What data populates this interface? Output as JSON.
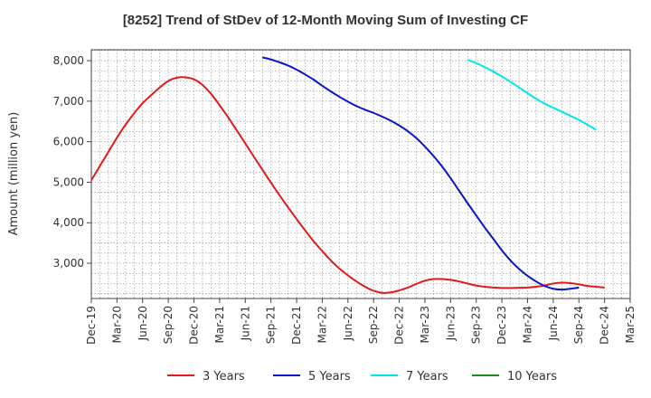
{
  "chart_data": {
    "type": "line",
    "title": "[8252]  Trend of StDev of 12-Month Moving Sum of Investing CF",
    "ylabel": "Amount (million yen)",
    "xlabel": "",
    "x_start": "Dec-19",
    "x_end": "Mar-25",
    "x_ticks": [
      "Dec-19",
      "Mar-20",
      "Jun-20",
      "Sep-20",
      "Dec-20",
      "Mar-21",
      "Jun-21",
      "Sep-21",
      "Dec-21",
      "Mar-22",
      "Jun-22",
      "Sep-22",
      "Dec-22",
      "Mar-23",
      "Jun-23",
      "Sep-23",
      "Dec-23",
      "Mar-24",
      "Jun-24",
      "Sep-24",
      "Dec-24",
      "Mar-25"
    ],
    "y_ticks": [
      3000,
      4000,
      5000,
      6000,
      7000,
      8000
    ],
    "ylim": [
      2130,
      8270
    ],
    "grid": true,
    "legend_position": "bottom",
    "series": [
      {
        "name": "3 Years",
        "color": "#e31a1c",
        "points": [
          [
            "Dec-19",
            5050
          ],
          [
            "Jan-20",
            5400
          ],
          [
            "Feb-20",
            5750
          ],
          [
            "Mar-20",
            6100
          ],
          [
            "Apr-20",
            6420
          ],
          [
            "May-20",
            6700
          ],
          [
            "Jun-20",
            6950
          ],
          [
            "Jul-20",
            7150
          ],
          [
            "Aug-20",
            7340
          ],
          [
            "Sep-20",
            7500
          ],
          [
            "Oct-20",
            7580
          ],
          [
            "Nov-20",
            7590
          ],
          [
            "Dec-20",
            7540
          ],
          [
            "Jan-21",
            7400
          ],
          [
            "Feb-21",
            7180
          ],
          [
            "Mar-21",
            6900
          ],
          [
            "Apr-21",
            6600
          ],
          [
            "May-21",
            6280
          ],
          [
            "Jun-21",
            5960
          ],
          [
            "Jul-21",
            5630
          ],
          [
            "Aug-21",
            5310
          ],
          [
            "Sep-21",
            4990
          ],
          [
            "Oct-21",
            4680
          ],
          [
            "Nov-21",
            4380
          ],
          [
            "Dec-21",
            4090
          ],
          [
            "Jan-22",
            3810
          ],
          [
            "Feb-22",
            3540
          ],
          [
            "Mar-22",
            3300
          ],
          [
            "Apr-22",
            3070
          ],
          [
            "May-22",
            2870
          ],
          [
            "Jun-22",
            2700
          ],
          [
            "Jul-22",
            2550
          ],
          [
            "Aug-22",
            2420
          ],
          [
            "Sep-22",
            2320
          ],
          [
            "Oct-22",
            2270
          ],
          [
            "Nov-22",
            2280
          ],
          [
            "Dec-22",
            2330
          ],
          [
            "Jan-23",
            2400
          ],
          [
            "Feb-23",
            2490
          ],
          [
            "Mar-23",
            2570
          ],
          [
            "Apr-23",
            2610
          ],
          [
            "May-23",
            2610
          ],
          [
            "Jun-23",
            2590
          ],
          [
            "Jul-23",
            2550
          ],
          [
            "Aug-23",
            2500
          ],
          [
            "Sep-23",
            2450
          ],
          [
            "Oct-23",
            2420
          ],
          [
            "Nov-23",
            2400
          ],
          [
            "Dec-23",
            2390
          ],
          [
            "Jan-24",
            2390
          ],
          [
            "Feb-24",
            2395
          ],
          [
            "Mar-24",
            2400
          ],
          [
            "Apr-24",
            2420
          ],
          [
            "May-24",
            2450
          ],
          [
            "Jun-24",
            2500
          ],
          [
            "Jul-24",
            2520
          ],
          [
            "Aug-24",
            2510
          ],
          [
            "Sep-24",
            2480
          ],
          [
            "Oct-24",
            2440
          ],
          [
            "Nov-24",
            2420
          ],
          [
            "Dec-24",
            2400
          ]
        ]
      },
      {
        "name": "5 Years",
        "color": "#0a14c8",
        "points": [
          [
            "Aug-21",
            8080
          ],
          [
            "Sep-21",
            8030
          ],
          [
            "Oct-21",
            7960
          ],
          [
            "Nov-21",
            7880
          ],
          [
            "Dec-21",
            7780
          ],
          [
            "Jan-22",
            7660
          ],
          [
            "Feb-22",
            7530
          ],
          [
            "Mar-22",
            7380
          ],
          [
            "Apr-22",
            7240
          ],
          [
            "May-22",
            7110
          ],
          [
            "Jun-22",
            6990
          ],
          [
            "Jul-22",
            6880
          ],
          [
            "Aug-22",
            6790
          ],
          [
            "Sep-22",
            6710
          ],
          [
            "Oct-22",
            6620
          ],
          [
            "Nov-22",
            6520
          ],
          [
            "Dec-22",
            6400
          ],
          [
            "Jan-23",
            6260
          ],
          [
            "Feb-23",
            6090
          ],
          [
            "Mar-23",
            5880
          ],
          [
            "Apr-23",
            5650
          ],
          [
            "May-23",
            5390
          ],
          [
            "Jun-23",
            5100
          ],
          [
            "Jul-23",
            4790
          ],
          [
            "Aug-23",
            4480
          ],
          [
            "Sep-23",
            4180
          ],
          [
            "Oct-23",
            3880
          ],
          [
            "Nov-23",
            3600
          ],
          [
            "Dec-23",
            3320
          ],
          [
            "Jan-24",
            3070
          ],
          [
            "Feb-24",
            2860
          ],
          [
            "Mar-24",
            2690
          ],
          [
            "Apr-24",
            2550
          ],
          [
            "May-24",
            2440
          ],
          [
            "Jun-24",
            2370
          ],
          [
            "Jul-24",
            2350
          ],
          [
            "Aug-24",
            2370
          ],
          [
            "Sep-24",
            2400
          ]
        ]
      },
      {
        "name": "7 Years",
        "color": "#00e5ee",
        "points": [
          [
            "Aug-23",
            8020
          ],
          [
            "Sep-23",
            7940
          ],
          [
            "Oct-23",
            7840
          ],
          [
            "Nov-23",
            7730
          ],
          [
            "Dec-23",
            7610
          ],
          [
            "Jan-24",
            7480
          ],
          [
            "Feb-24",
            7340
          ],
          [
            "Mar-24",
            7200
          ],
          [
            "Apr-24",
            7060
          ],
          [
            "May-24",
            6940
          ],
          [
            "Jun-24",
            6840
          ],
          [
            "Jul-24",
            6740
          ],
          [
            "Aug-24",
            6640
          ],
          [
            "Sep-24",
            6540
          ],
          [
            "Oct-24",
            6420
          ],
          [
            "Nov-24",
            6300
          ]
        ]
      },
      {
        "name": "10 Years",
        "color": "#1a8c1a",
        "points": []
      }
    ]
  }
}
